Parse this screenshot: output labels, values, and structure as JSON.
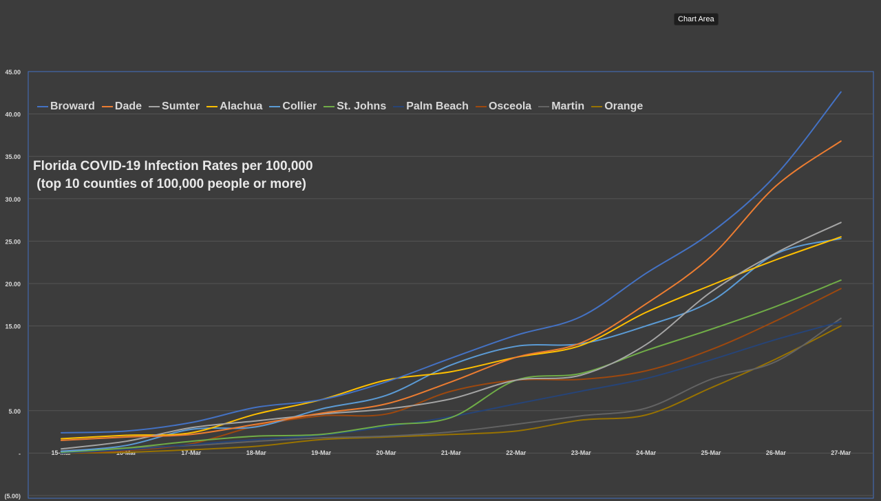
{
  "tooltip": "Chart Area",
  "chart_data": {
    "type": "line",
    "title_lines": [
      "Florida COVID-19 Infection Rates per 100,000",
      " (top 10 counties of 100,000 people or more)"
    ],
    "categories": [
      "15-Mar",
      "16-Mar",
      "17-Mar",
      "18-Mar",
      "19-Mar",
      "20-Mar",
      "21-Mar",
      "22-Mar",
      "23-Mar",
      "24-Mar",
      "25-Mar",
      "26-Mar",
      "27-Mar"
    ],
    "yticks": [
      45,
      40,
      35,
      30,
      25,
      20,
      15,
      5,
      0,
      -5
    ],
    "ytick_labels": [
      "45.00",
      "40.00",
      "35.00",
      "30.00",
      "25.00",
      "20.00",
      "15.00",
      "5.00",
      "-",
      "(5.00)"
    ],
    "ylim": [
      -5,
      45
    ],
    "legend_position": "top",
    "grid": true,
    "series": [
      {
        "name": "Broward",
        "color": "#4472c4",
        "values": [
          2.4,
          2.6,
          3.6,
          5.4,
          6.3,
          8.4,
          11.2,
          13.9,
          16.1,
          21.2,
          26.0,
          32.8,
          42.6
        ]
      },
      {
        "name": "Dade",
        "color": "#ed7d31",
        "values": [
          1.5,
          1.9,
          2.2,
          3.4,
          4.7,
          5.8,
          8.4,
          11.3,
          13.0,
          17.6,
          23.2,
          31.5,
          36.8
        ]
      },
      {
        "name": "Sumter",
        "color": "#a5a5a5",
        "values": [
          0.5,
          1.4,
          3.0,
          3.8,
          4.6,
          5.2,
          6.4,
          8.6,
          9.2,
          12.8,
          19.0,
          23.6,
          27.2
        ]
      },
      {
        "name": "Alachua",
        "color": "#ffc000",
        "values": [
          1.7,
          2.1,
          2.4,
          4.6,
          6.3,
          8.6,
          9.6,
          11.3,
          12.7,
          16.6,
          19.8,
          22.8,
          25.5
        ]
      },
      {
        "name": "Collier",
        "color": "#5b9bd5",
        "values": [
          0.2,
          0.9,
          2.8,
          3.1,
          5.2,
          6.8,
          10.4,
          12.6,
          12.9,
          15.0,
          17.9,
          23.5,
          25.3
        ]
      },
      {
        "name": "St. Johns",
        "color": "#70ad47",
        "values": [
          0.1,
          0.6,
          1.4,
          2.0,
          2.2,
          3.3,
          4.2,
          8.6,
          9.4,
          12.1,
          14.6,
          17.3,
          20.4
        ]
      },
      {
        "name": "Palm Beach",
        "color": "#264478",
        "values": [
          0.0,
          0.4,
          1.0,
          1.6,
          2.1,
          3.1,
          4.3,
          5.8,
          7.3,
          8.8,
          11.0,
          13.4,
          15.5
        ]
      },
      {
        "name": "Osceola",
        "color": "#9e480e",
        "values": [
          0.0,
          0.3,
          1.1,
          3.2,
          4.4,
          4.6,
          7.3,
          8.6,
          8.7,
          9.7,
          12.2,
          15.6,
          19.4
        ]
      },
      {
        "name": "Martin",
        "color": "#636363",
        "values": [
          0.3,
          0.6,
          0.9,
          1.4,
          1.8,
          2.0,
          2.5,
          3.4,
          4.4,
          5.3,
          8.7,
          10.8,
          15.9
        ]
      },
      {
        "name": "Orange",
        "color": "#997300",
        "values": [
          0.0,
          0.1,
          0.4,
          0.8,
          1.6,
          1.9,
          2.2,
          2.6,
          3.9,
          4.5,
          7.7,
          11.1,
          15.0
        ]
      }
    ]
  }
}
